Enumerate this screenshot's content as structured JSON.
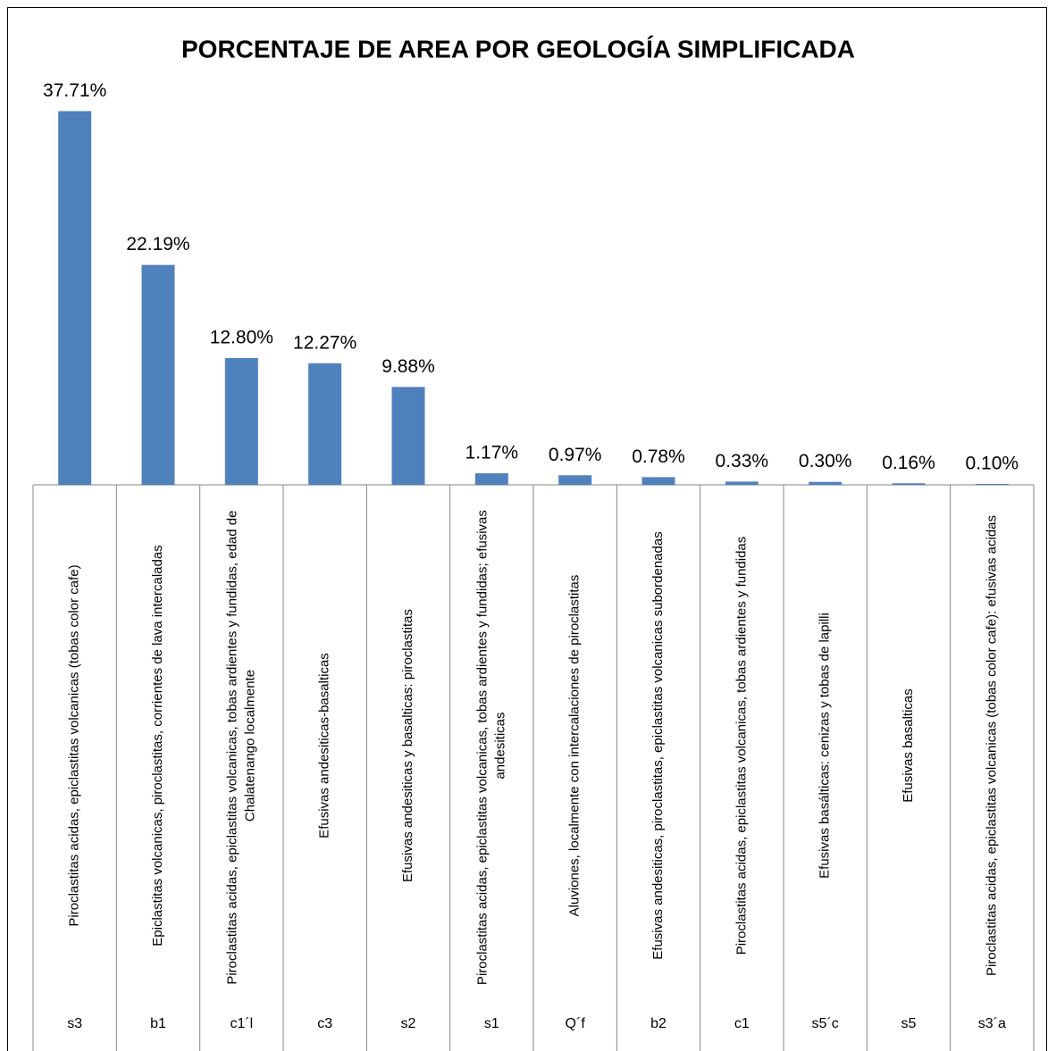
{
  "chart_data": {
    "type": "bar",
    "title": "PORCENTAJE DE AREA POR GEOLOGÍA SIMPLIFICADA",
    "categories": [
      "Piroclastitas acidas, epiclastitas volcanicas (tobas color cafe)",
      "Epiclastitas volcanicas, piroclastitas, corrientes de lava intercaladas",
      "Piroclastitas acidas, epiclastitas volcanicas, tobas ardientes y fundidas, edad de Chalatenango localmente",
      "Efusivas andesiticas-basalticas",
      "Efusivas andesiticas y basalticas: piroclastitas",
      "Piroclastitas acidas, epiclastitas volcanicas, tobas ardientes y fundidas; efusivas andesiticas",
      "Aluviones, localmente con intercalaciones de piroclastitas",
      "Efusivas andesiticas, piroclastitas, epiclastitas volcanicas subordenadas",
      "Piroclastitas acidas, epiclastitas volcanicas, tobas ardientes y fundidas",
      "Efusivas basálticas: cenizas y tobas de lapilli",
      "Efusivas basalticas",
      "Piroclastitas acidas, epiclastitas volcanicas (tobas color cafe): efusivas acidas"
    ],
    "codes": [
      "s3",
      "b1",
      "c1´l",
      "c3",
      "s2",
      "s1",
      "Q´f",
      "b2",
      "c1",
      "s5´c",
      "s5",
      "s3´a"
    ],
    "values": [
      37.71,
      22.19,
      12.8,
      12.27,
      9.88,
      1.17,
      0.97,
      0.78,
      0.33,
      0.3,
      0.16,
      0.1
    ],
    "value_labels": [
      "37.71%",
      "22.19%",
      "12.80%",
      "12.27%",
      "9.88%",
      "1.17%",
      "0.97%",
      "0.78%",
      "0.33%",
      "0.30%",
      "0.16%",
      "0.10%"
    ],
    "color": "#4f81bd",
    "ylim": [
      0,
      40
    ]
  }
}
